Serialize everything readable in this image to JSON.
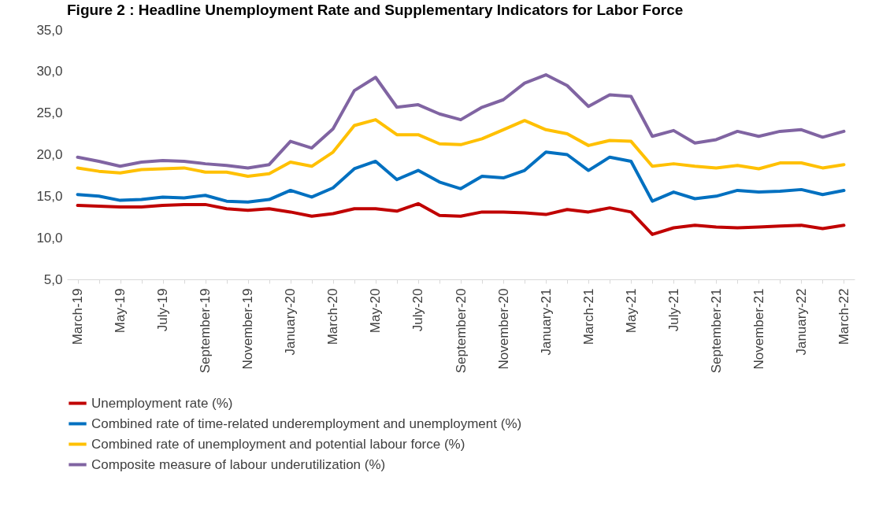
{
  "chart_data": {
    "type": "line",
    "title": "Figure 2 : Headline Unemployment Rate and Supplementary Indicators for Labor Force",
    "categories": [
      "March-19",
      null,
      "May-19",
      null,
      "July-19",
      null,
      "September-19",
      null,
      "November-19",
      null,
      "January-20",
      null,
      "March-20",
      null,
      "May-20",
      null,
      "July-20",
      null,
      "September-20",
      null,
      "November-20",
      null,
      "January-21",
      null,
      "March-21",
      null,
      "May-21",
      null,
      "July-21",
      null,
      "September-21",
      null,
      "November-21",
      null,
      "January-22",
      null,
      "March-22"
    ],
    "series": [
      {
        "name": "Unemployment rate (%)",
        "color": "#c00000",
        "values": [
          13.9,
          13.8,
          13.7,
          13.7,
          13.9,
          14.0,
          14.0,
          13.5,
          13.3,
          13.5,
          13.1,
          12.6,
          12.9,
          13.5,
          13.5,
          13.2,
          14.1,
          12.7,
          12.6,
          13.1,
          13.1,
          13.0,
          12.8,
          13.4,
          13.1,
          13.6,
          13.1,
          10.4,
          11.2,
          11.5,
          11.3,
          11.2,
          11.3,
          11.4,
          11.5,
          11.1,
          11.5
        ]
      },
      {
        "name": "Combined rate of time-related underemployment and unemployment (%)",
        "color": "#0070c0",
        "values": [
          15.2,
          15.0,
          14.5,
          14.6,
          14.9,
          14.8,
          15.1,
          14.4,
          14.3,
          14.6,
          15.7,
          14.9,
          16.0,
          18.3,
          19.2,
          17.0,
          18.1,
          16.7,
          15.9,
          17.4,
          17.2,
          18.1,
          20.3,
          20.0,
          18.1,
          19.7,
          19.2,
          14.4,
          15.5,
          14.7,
          15.0,
          15.7,
          15.5,
          15.6,
          15.8,
          15.2,
          15.7
        ]
      },
      {
        "name": "Combined rate of unemployment and potential labour force (%)",
        "color": "#ffc000",
        "values": [
          18.4,
          18.0,
          17.8,
          18.2,
          18.3,
          18.4,
          17.9,
          17.9,
          17.4,
          17.7,
          19.1,
          18.6,
          20.3,
          23.5,
          24.2,
          22.4,
          22.4,
          21.3,
          21.2,
          21.9,
          23.0,
          24.1,
          23.0,
          22.5,
          21.1,
          21.7,
          21.6,
          18.6,
          18.9,
          18.6,
          18.4,
          18.7,
          18.3,
          19.0,
          19.0,
          18.4,
          18.8
        ]
      },
      {
        "name": "Composite measure of labour underutilization (%)",
        "color": "#8064a2",
        "values": [
          19.7,
          19.2,
          18.6,
          19.1,
          19.3,
          19.2,
          18.9,
          18.7,
          18.4,
          18.8,
          21.6,
          20.8,
          23.1,
          27.7,
          29.3,
          25.7,
          26.0,
          24.9,
          24.2,
          25.7,
          26.6,
          28.6,
          29.6,
          28.3,
          25.8,
          27.2,
          27.0,
          22.2,
          22.9,
          21.4,
          21.8,
          22.8,
          22.2,
          22.8,
          23.0,
          22.1,
          22.8
        ]
      }
    ],
    "ylim": [
      5,
      35
    ],
    "yticks": [
      {
        "value": 5,
        "label": "5,0"
      },
      {
        "value": 10,
        "label": "10,0"
      },
      {
        "value": 15,
        "label": "15,0"
      },
      {
        "value": 20,
        "label": "20,0"
      },
      {
        "value": 25,
        "label": "25,0"
      },
      {
        "value": 30,
        "label": "30,0"
      },
      {
        "value": 35,
        "label": "35,0"
      }
    ],
    "grid": false,
    "legend": "bottom",
    "marker": "none",
    "line_style": "solid"
  }
}
